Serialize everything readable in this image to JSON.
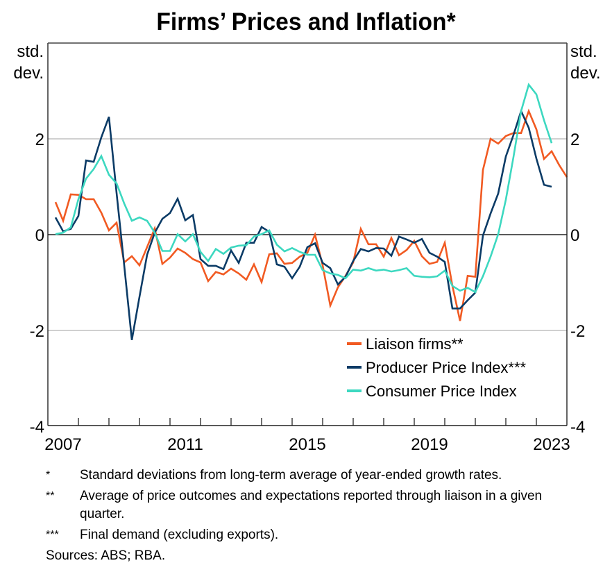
{
  "chart_data": {
    "type": "line",
    "title": "Firms’ Prices and Inflation*",
    "ylabel_left": [
      "std.",
      "dev."
    ],
    "ylabel_right": [
      "std.",
      "dev."
    ],
    "xlabel": "",
    "ylim": [
      -4,
      3.8
    ],
    "xlim": [
      2007,
      2024
    ],
    "yticks": [
      -4,
      -2,
      0,
      2
    ],
    "ytick_labels": [
      "-4",
      "-2",
      "0",
      "2"
    ],
    "xticks_labeled": [
      2007,
      2011,
      2015,
      2019,
      2023
    ],
    "xtick_labels": [
      "2007",
      "2011",
      "2015",
      "2019",
      "2023"
    ],
    "x_minor_ticks": [
      2008,
      2009,
      2010,
      2012,
      2013,
      2014,
      2016,
      2017,
      2018,
      2020,
      2021,
      2022,
      2024
    ],
    "grid": "horizontal at y ticks",
    "zero_line": true,
    "legend_position": "bottom-right",
    "x_start": 2007.25,
    "x_step": 0.25,
    "series": [
      {
        "name": "Liaison firms**",
        "color": "#f15a22",
        "values": [
          0.68,
          0.29,
          0.84,
          0.83,
          0.74,
          0.74,
          0.46,
          0.09,
          0.25,
          -0.58,
          -0.45,
          -0.64,
          -0.26,
          0.13,
          -0.61,
          -0.48,
          -0.29,
          -0.38,
          -0.51,
          -0.58,
          -0.97,
          -0.78,
          -0.83,
          -0.71,
          -0.81,
          -0.94,
          -0.62,
          -0.99,
          -0.41,
          -0.39,
          -0.61,
          -0.59,
          -0.46,
          -0.38,
          0.0,
          -0.64,
          -1.48,
          -1.1,
          -0.86,
          -0.58,
          0.12,
          -0.2,
          -0.2,
          -0.46,
          -0.07,
          -0.43,
          -0.32,
          -0.13,
          -0.45,
          -0.61,
          -0.57,
          -0.17,
          -1.07,
          -1.8,
          -0.86,
          -0.88,
          1.35,
          2.0,
          1.9,
          2.06,
          2.12,
          2.12,
          2.58,
          2.2,
          1.58,
          1.74,
          1.45,
          1.2
        ]
      },
      {
        "name": "Producer Price Index***",
        "color": "#0b3b66",
        "values": [
          0.36,
          0.07,
          0.12,
          0.39,
          1.55,
          1.52,
          2.03,
          2.46,
          0.87,
          -0.64,
          -2.2,
          -1.3,
          -0.42,
          0.04,
          0.33,
          0.45,
          0.75,
          0.3,
          0.41,
          -0.51,
          -0.65,
          -0.65,
          -0.72,
          -0.33,
          -0.59,
          -0.17,
          -0.17,
          0.16,
          0.06,
          -0.62,
          -0.67,
          -0.91,
          -0.67,
          -0.26,
          -0.18,
          -0.59,
          -0.7,
          -1.04,
          -0.88,
          -0.55,
          -0.3,
          -0.35,
          -0.28,
          -0.29,
          -0.44,
          -0.04,
          -0.1,
          -0.17,
          -0.09,
          -0.38,
          -0.46,
          -0.57,
          -1.54,
          -1.54,
          -1.37,
          -1.21,
          -0.02,
          0.44,
          0.86,
          1.63,
          2.08,
          2.58,
          2.23,
          1.59,
          1.04,
          1.0
        ]
      },
      {
        "name": "Consumer Price Index",
        "color": "#3dd8c0",
        "values": [
          0.01,
          0.04,
          0.15,
          0.74,
          1.17,
          1.37,
          1.64,
          1.25,
          1.07,
          0.65,
          0.29,
          0.36,
          0.29,
          0.04,
          -0.34,
          -0.34,
          0.01,
          -0.14,
          0.01,
          -0.36,
          -0.55,
          -0.3,
          -0.4,
          -0.27,
          -0.23,
          -0.22,
          -0.04,
          0.01,
          0.09,
          -0.21,
          -0.35,
          -0.28,
          -0.36,
          -0.42,
          -0.42,
          -0.74,
          -0.81,
          -0.84,
          -0.91,
          -0.73,
          -0.75,
          -0.7,
          -0.75,
          -0.73,
          -0.77,
          -0.74,
          -0.7,
          -0.86,
          -0.88,
          -0.89,
          -0.87,
          -0.75,
          -1.07,
          -1.17,
          -1.11,
          -1.2,
          -0.87,
          -0.46,
          0.01,
          0.73,
          1.62,
          2.58,
          3.13,
          2.93,
          2.39,
          1.91
        ]
      }
    ]
  },
  "notes": [
    {
      "mark": "*",
      "text": "Standard deviations from long-term average of year-ended growth rates."
    },
    {
      "mark": "**",
      "text": "Average of price outcomes and expectations reported through liaison in a given quarter."
    },
    {
      "mark": "***",
      "text": "Final demand (excluding exports)."
    }
  ],
  "sources": "Sources: ABS; RBA."
}
